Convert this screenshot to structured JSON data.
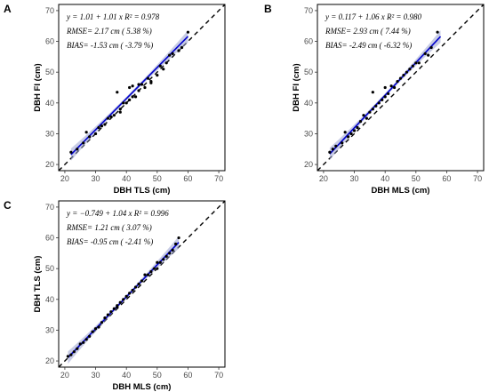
{
  "chart_data": [
    {
      "panel": "A",
      "type": "scatter",
      "xlabel": "DBH TLS (cm)",
      "ylabel": "DBH FI (cm)",
      "xlim": [
        18,
        72
      ],
      "ylim": [
        18,
        72
      ],
      "xticks": [
        20,
        30,
        40,
        50,
        60,
        70
      ],
      "yticks": [
        20,
        30,
        40,
        50,
        60,
        70
      ],
      "annotations": [
        "y = 1.01 + 1.01 x   R² = 0.978",
        "RMSE= 2.17 cm ( 5.38 %)",
        "BIAS= -1.53 cm ( -3.79 %)"
      ],
      "fit": {
        "intercept": 1.01,
        "slope": 1.01,
        "x_range": [
          22,
          60
        ]
      },
      "reference_line": "1:1",
      "points": [
        [
          22,
          24
        ],
        [
          24,
          25
        ],
        [
          26,
          27
        ],
        [
          27,
          30.5
        ],
        [
          28,
          29
        ],
        [
          30,
          30
        ],
        [
          31,
          32
        ],
        [
          32,
          32.5
        ],
        [
          33,
          33
        ],
        [
          34,
          35
        ],
        [
          35,
          35.5
        ],
        [
          36,
          36
        ],
        [
          37,
          43.5
        ],
        [
          38,
          38
        ],
        [
          38,
          37
        ],
        [
          39,
          40
        ],
        [
          40,
          40
        ],
        [
          41,
          41
        ],
        [
          41,
          45
        ],
        [
          42,
          42
        ],
        [
          42,
          45.5
        ],
        [
          43,
          42
        ],
        [
          44,
          44
        ],
        [
          44,
          46
        ],
        [
          45,
          46
        ],
        [
          46,
          45
        ],
        [
          47,
          48
        ],
        [
          48,
          47
        ],
        [
          48,
          46.5
        ],
        [
          50,
          49
        ],
        [
          51,
          52
        ],
        [
          52,
          51
        ],
        [
          53,
          53
        ],
        [
          54,
          55.5
        ],
        [
          55,
          56
        ],
        [
          57,
          57
        ],
        [
          58,
          58
        ],
        [
          60,
          63
        ]
      ]
    },
    {
      "panel": "B",
      "type": "scatter",
      "xlabel": "DBH MLS (cm)",
      "ylabel": "DBH FI (cm)",
      "xlim": [
        18,
        72
      ],
      "ylim": [
        18,
        72
      ],
      "xticks": [
        20,
        30,
        40,
        50,
        60,
        70
      ],
      "yticks": [
        20,
        30,
        40,
        50,
        60,
        70
      ],
      "annotations": [
        "y = 0.117 + 1.06 x   R² = 0.980",
        "RMSE= 2.93 cm ( 7.44 %)",
        "BIAS= -2.49 cm ( -6.32 %)"
      ],
      "fit": {
        "intercept": 0.117,
        "slope": 1.06,
        "x_range": [
          22,
          58
        ]
      },
      "reference_line": "1:1",
      "points": [
        [
          22,
          24
        ],
        [
          23,
          25
        ],
        [
          24,
          26
        ],
        [
          26,
          27
        ],
        [
          27,
          30.5
        ],
        [
          28,
          29
        ],
        [
          29,
          30
        ],
        [
          30,
          31
        ],
        [
          31,
          32
        ],
        [
          32,
          34
        ],
        [
          33,
          36
        ],
        [
          34,
          35
        ],
        [
          35,
          37
        ],
        [
          36,
          38
        ],
        [
          36,
          43.5
        ],
        [
          37,
          39
        ],
        [
          38,
          40
        ],
        [
          39,
          41
        ],
        [
          40,
          42
        ],
        [
          40,
          45
        ],
        [
          41,
          43
        ],
        [
          42,
          45.5
        ],
        [
          43,
          45
        ],
        [
          44,
          47
        ],
        [
          45,
          48
        ],
        [
          46,
          49
        ],
        [
          47,
          50
        ],
        [
          48,
          51
        ],
        [
          49,
          52
        ],
        [
          50,
          53
        ],
        [
          51,
          53
        ],
        [
          53,
          56
        ],
        [
          54,
          55.5
        ],
        [
          55,
          58
        ],
        [
          57,
          63
        ]
      ]
    },
    {
      "panel": "C",
      "type": "scatter",
      "xlabel": "DBH MLS (cm)",
      "ylabel": "DBH TLS (cm)",
      "xlim": [
        18,
        72
      ],
      "ylim": [
        18,
        72
      ],
      "xticks": [
        20,
        30,
        40,
        50,
        60,
        70
      ],
      "yticks": [
        20,
        30,
        40,
        50,
        60,
        70
      ],
      "annotations": [
        "y = −0.749 + 1.04 x   R² = 0.996",
        "RMSE= 1.21 cm ( 3.07 %)",
        "BIAS= -0.95 cm ( -2.41 %)"
      ],
      "fit": {
        "intercept": -0.749,
        "slope": 1.04,
        "x_range": [
          21,
          57
        ]
      },
      "reference_line": "1:1",
      "points": [
        [
          21,
          21.5
        ],
        [
          22,
          22
        ],
        [
          23,
          23
        ],
        [
          24,
          24
        ],
        [
          25,
          25.5
        ],
        [
          26,
          26
        ],
        [
          27,
          27
        ],
        [
          28,
          28
        ],
        [
          29,
          29.5
        ],
        [
          30,
          30.5
        ],
        [
          31,
          31
        ],
        [
          32,
          32.5
        ],
        [
          33,
          34
        ],
        [
          34,
          35
        ],
        [
          35,
          36
        ],
        [
          36,
          37
        ],
        [
          37,
          38
        ],
        [
          37,
          37.5
        ],
        [
          38,
          39
        ],
        [
          39,
          40
        ],
        [
          40,
          41
        ],
        [
          41,
          42
        ],
        [
          42,
          43
        ],
        [
          43,
          44
        ],
        [
          44,
          45
        ],
        [
          45,
          46
        ],
        [
          46,
          48
        ],
        [
          47,
          48
        ],
        [
          48,
          49
        ],
        [
          49,
          50
        ],
        [
          50,
          52
        ],
        [
          50,
          50
        ],
        [
          51,
          52
        ],
        [
          52,
          53
        ],
        [
          53,
          54
        ],
        [
          54,
          55
        ],
        [
          55,
          56
        ],
        [
          56,
          58
        ],
        [
          57,
          60
        ]
      ]
    }
  ],
  "colors": {
    "points": "#000000",
    "fit_line": "#0000cc",
    "confidence_band": "#9aa3d0",
    "reference_line": "#000000",
    "frame": "#000000",
    "tick_label": "#4d4d4d"
  }
}
